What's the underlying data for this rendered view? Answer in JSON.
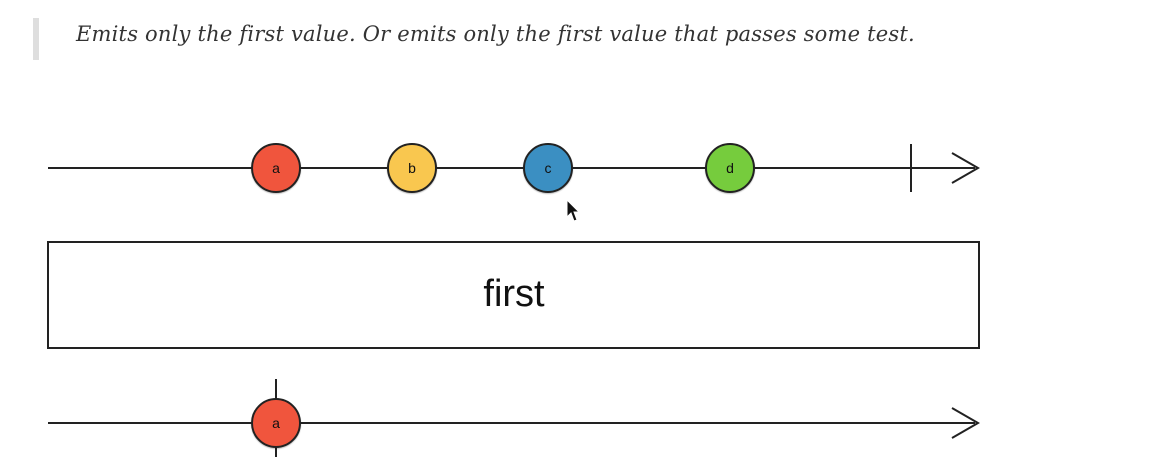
{
  "description": {
    "text": "Emits only the first value. Or emits only the first value that passes some test."
  },
  "operator": {
    "label": "first"
  },
  "colors": {
    "a": "#f0543c",
    "b": "#f9c74f",
    "c": "#3a8fc2",
    "d": "#76cc3c",
    "line": "#222222",
    "box_fill": "#ffffff"
  },
  "input_stream": {
    "marbles": [
      {
        "label": "a",
        "color_key": "a"
      },
      {
        "label": "b",
        "color_key": "b"
      },
      {
        "label": "c",
        "color_key": "c"
      },
      {
        "label": "d",
        "color_key": "d"
      }
    ],
    "completes": true
  },
  "output_stream": {
    "marbles": [
      {
        "label": "a",
        "color_key": "a"
      }
    ],
    "completes_with_first": true
  },
  "cursor": {
    "icon": "mouse-pointer-icon"
  }
}
